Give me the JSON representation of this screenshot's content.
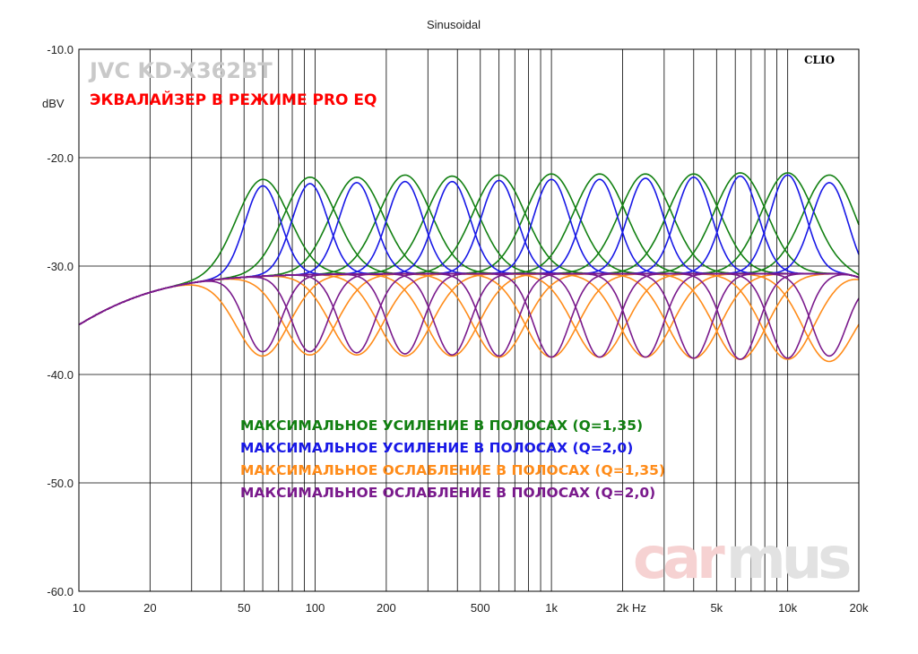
{
  "chart_data": {
    "type": "line",
    "title": "Sinusoidal",
    "product": "JVC KD-X362BT",
    "subtitle": "ЭКВАЛАЙЗЕР В РЕЖИМЕ PRO EQ",
    "software_label": "CLIO",
    "watermark": {
      "left": "car",
      "right": "mus"
    },
    "ylabel": "dBV",
    "xunit": "Hz",
    "x_scale": "log",
    "xlim": [
      10,
      20000
    ],
    "ylim": [
      -60,
      -10
    ],
    "grid": true,
    "y_ticks": [
      "-10.0",
      "-20.0",
      "-30.0",
      "-40.0",
      "-50.0",
      "-60.0"
    ],
    "x_ticks": [
      "10",
      "20",
      "50",
      "100",
      "200",
      "500",
      "1k",
      "2k",
      "5k",
      "10k",
      "20k"
    ],
    "band_centers_hz": [
      60,
      95,
      150,
      240,
      380,
      600,
      1000,
      1600,
      2500,
      4000,
      6300,
      10000,
      15000
    ],
    "series": [
      {
        "name": "МАКСИМАЛЬНОЕ УСИЛЕНИЕ В ПОЛОСАХ (Q=1,35)",
        "color": "#128012",
        "peaks_dbv": [
          -22.0,
          -21.8,
          -21.8,
          -21.6,
          -21.7,
          -21.6,
          -21.5,
          -21.5,
          -21.5,
          -21.5,
          -21.4,
          -21.4,
          -21.6
        ],
        "q": 1.35
      },
      {
        "name": "МАКСИМАЛЬНОЕ УСИЛЕНИЕ В ПОЛОСАХ (Q=2,0)",
        "color": "#1818e6",
        "peaks_dbv": [
          -22.6,
          -22.4,
          -22.3,
          -22.2,
          -22.2,
          -22.1,
          -22.0,
          -22.0,
          -21.9,
          -21.8,
          -21.7,
          -21.6,
          -22.3
        ],
        "q": 2.0
      },
      {
        "name": "МАКСИМАЛЬНОЕ ОСЛАБЛЕНИЕ В ПОЛОСАХ (Q=1,35)",
        "color": "#ff8c1a",
        "dips_dbv": [
          -38.3,
          -38.2,
          -38.2,
          -38.3,
          -38.3,
          -38.4,
          -38.4,
          -38.4,
          -38.4,
          -38.5,
          -38.6,
          -38.6,
          -38.8
        ],
        "q": 1.35
      },
      {
        "name": "МАКСИМАЛЬНОЕ ОСЛАБЛЕНИЕ В ПОЛОСАХ (Q=2,0)",
        "color": "#7a1a8c",
        "dips_dbv": [
          -37.9,
          -37.9,
          -38.0,
          -38.1,
          -38.2,
          -38.3,
          -38.4,
          -38.4,
          -38.4,
          -38.5,
          -38.6,
          -38.5,
          -38.3
        ],
        "q": 2.0
      }
    ]
  }
}
